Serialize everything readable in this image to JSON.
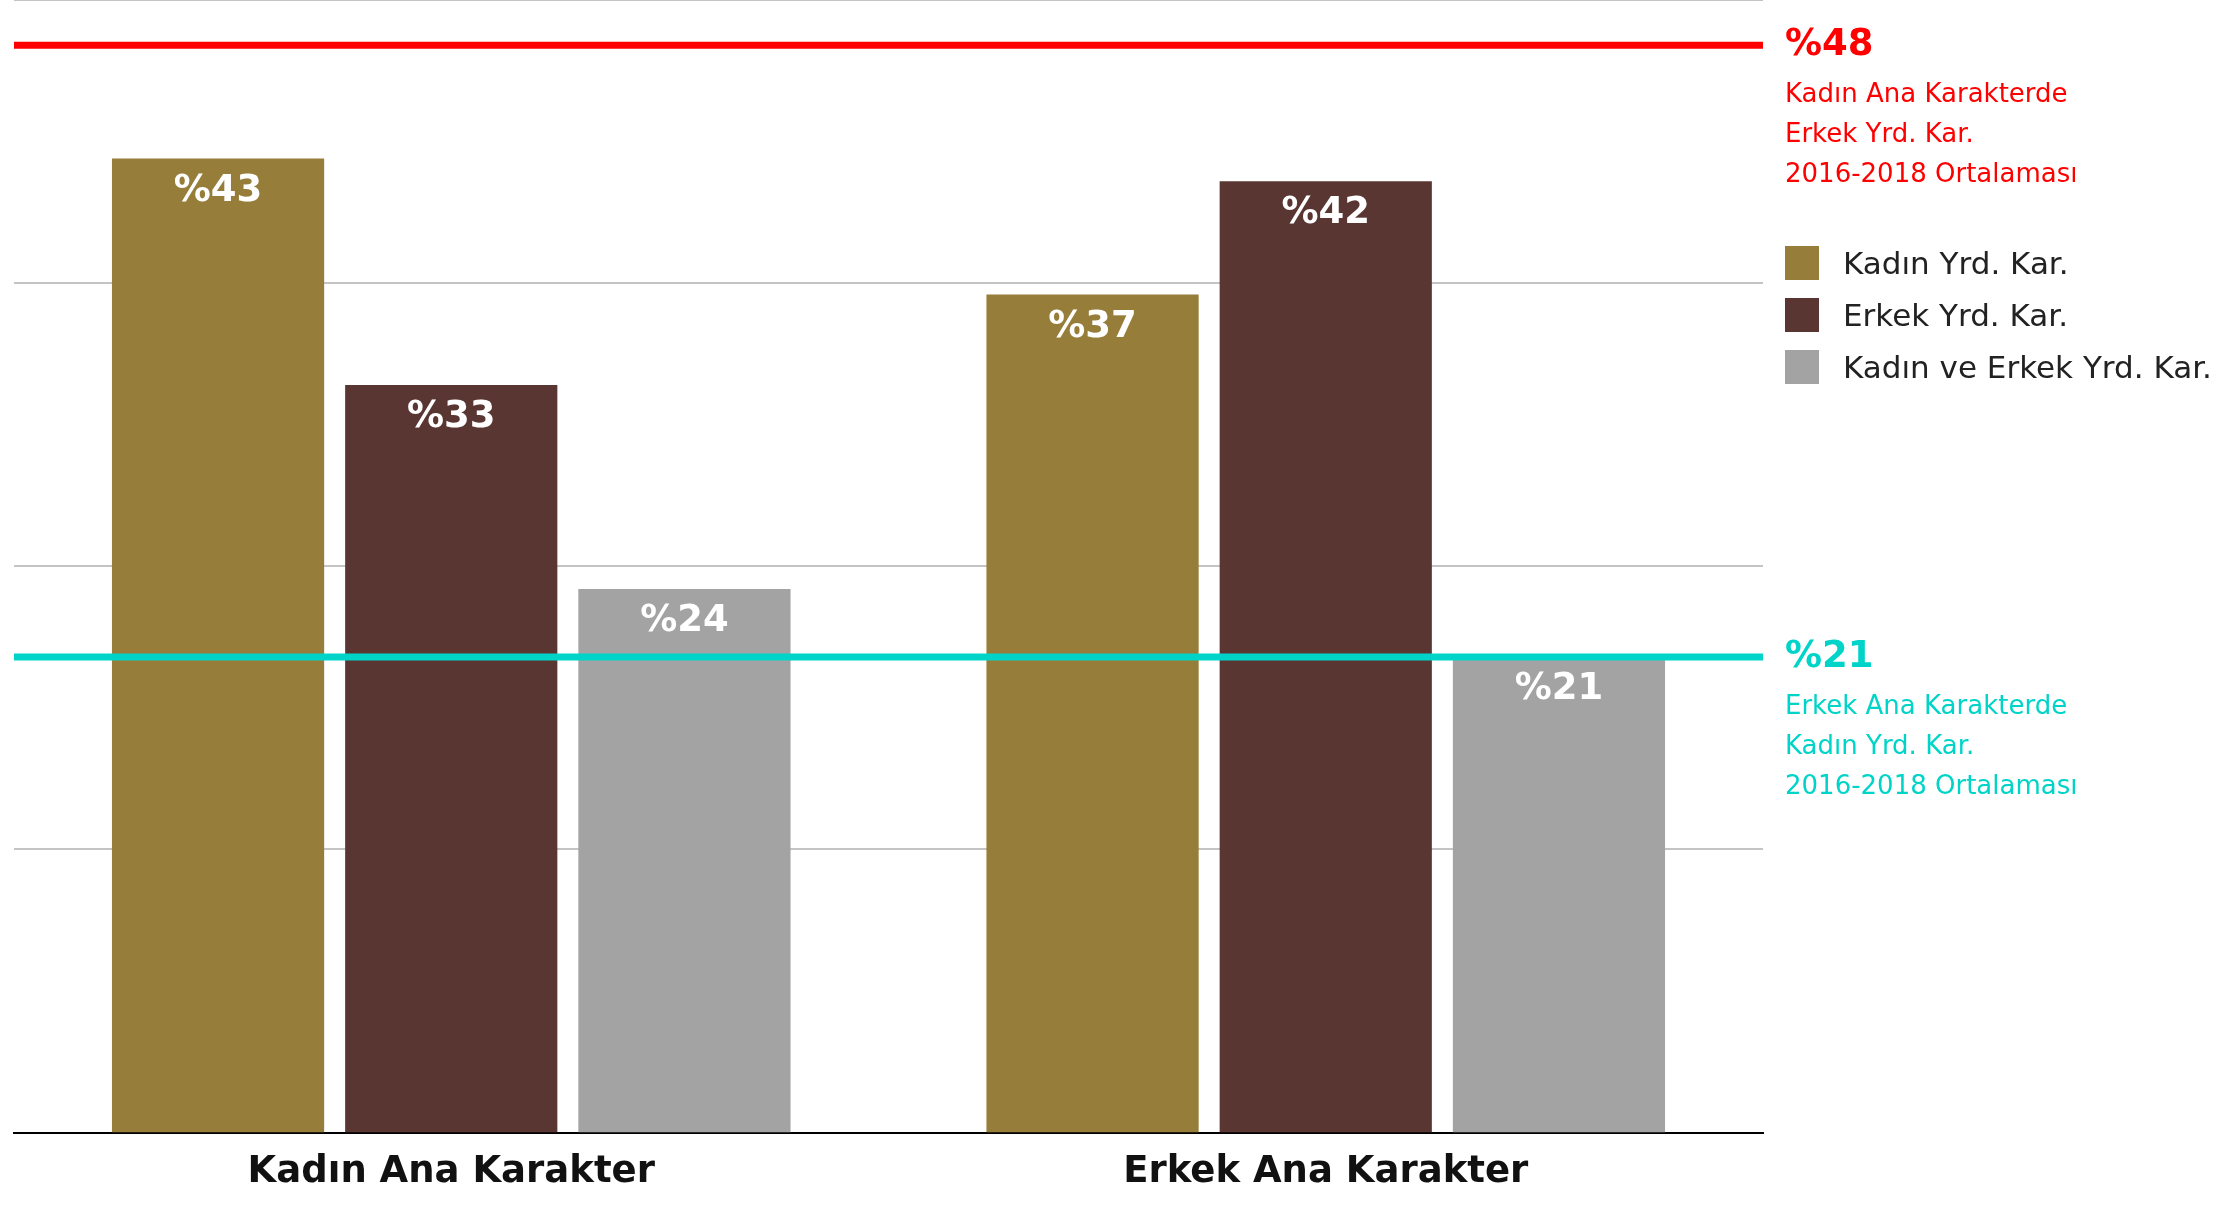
{
  "chart_data": {
    "type": "bar",
    "categories": [
      "Kadın Ana Karakter",
      "Erkek Ana Karakter"
    ],
    "series": [
      {
        "name": "Kadın Yrd. Kar.",
        "color": "#967d3a",
        "values": [
          43,
          37
        ],
        "value_labels": [
          "%43",
          "%37"
        ]
      },
      {
        "name": "Erkek Yrd. Kar.",
        "color": "#5a3633",
        "values": [
          33,
          42
        ],
        "value_labels": [
          "%33",
          "%42"
        ]
      },
      {
        "name": "Kadın ve Erkek Yrd. Kar.",
        "color": "#a3a3a3",
        "values": [
          24,
          21
        ],
        "value_labels": [
          "%24",
          "%21"
        ]
      }
    ],
    "ylim": [
      0,
      50
    ],
    "yticks": [
      {
        "value": 12.5,
        "label": null
      },
      {
        "value": 25,
        "label": null
      },
      {
        "value": 37.5,
        "label": null
      },
      {
        "value": 50,
        "label": null
      }
    ],
    "grid": "y",
    "tick_labels": "x",
    "legend": "right",
    "ref_lines": [
      {
        "axis": "y",
        "value": 48,
        "label": "%48\nKadın Ana Karakterde\nErkek Yrd. Kar.\n2016-2018 Ortalaması",
        "color": "#ff0000"
      },
      {
        "axis": "y",
        "value": 21,
        "label": "%21\nErkek Ana Karakterde\nKadın Yrd. Kar.\n2016-2018 Ortalaması",
        "color": "#00d4c8"
      }
    ]
  }
}
